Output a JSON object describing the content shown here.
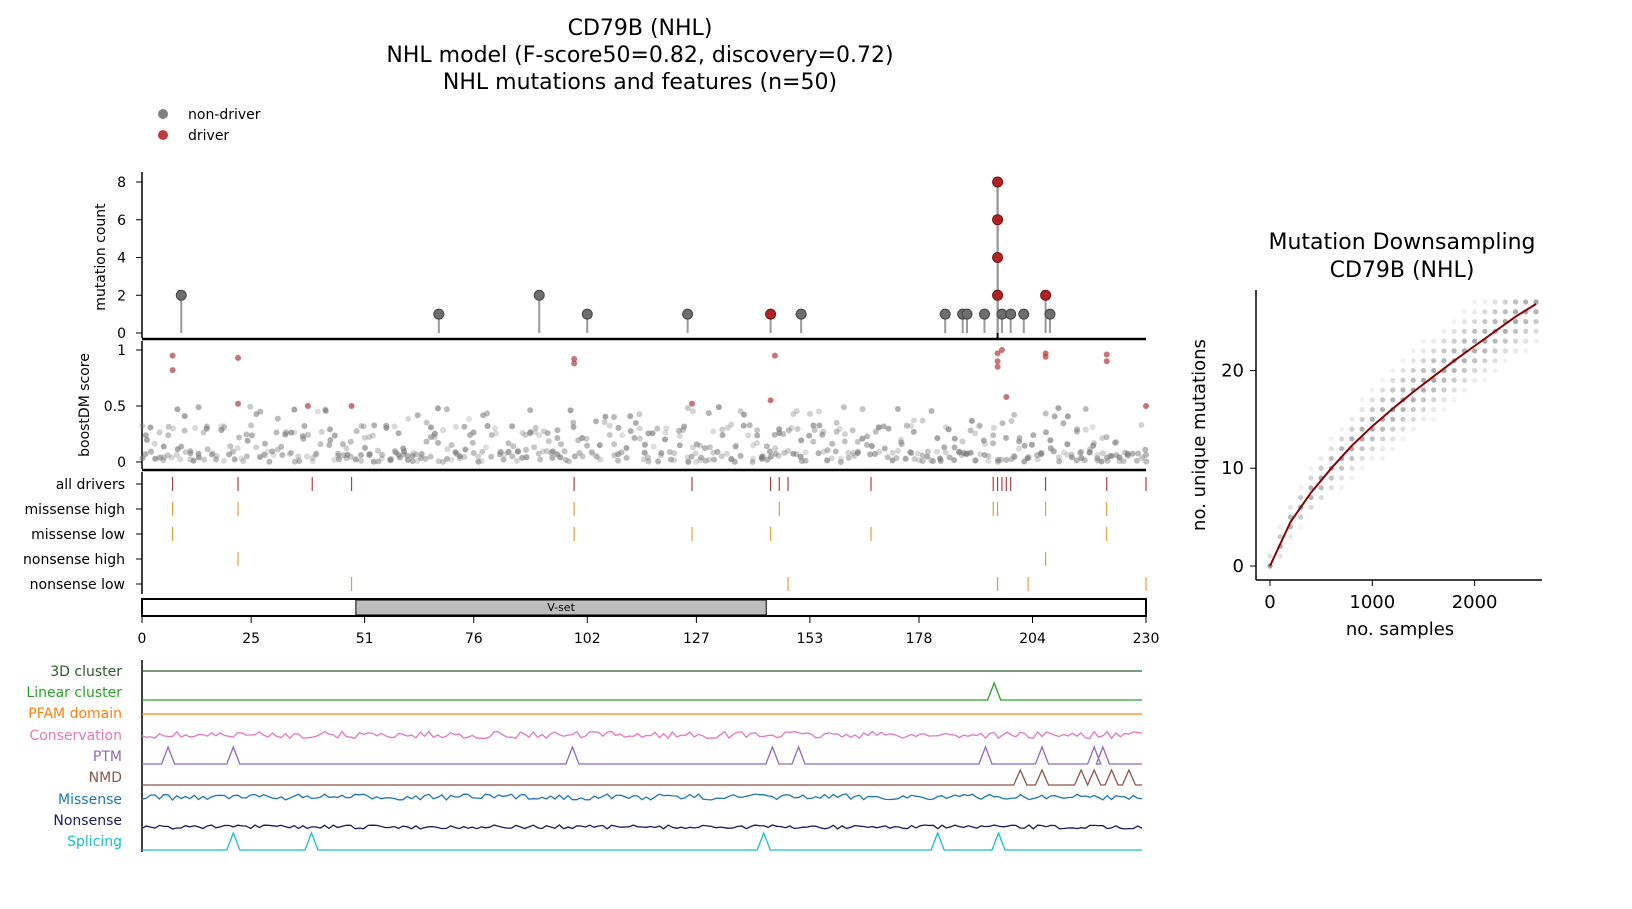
{
  "title_lines": [
    "CD79B (NHL)",
    "NHL model (F-score50=0.82, discovery=0.72)",
    "NHL mutations and features (n=50)"
  ],
  "legend": [
    {
      "label": "non-driver",
      "color": "#808080"
    },
    {
      "label": "driver",
      "color": "#c0393b"
    }
  ],
  "colors": {
    "driver": "#b22222",
    "nondriver": "#555555",
    "track_red": "#b04040",
    "track_orange": "#e0a040",
    "domain_fill": "#bdbdbd",
    "fit": "#8b0000"
  },
  "chart_data": [
    {
      "type": "lollipop",
      "title": "",
      "ylabel": "mutation count",
      "xlim": [
        0,
        230
      ],
      "ylim": [
        0,
        8
      ],
      "yticks": [
        0,
        2,
        4,
        6,
        8
      ],
      "non_driver_points": [
        [
          9,
          2
        ],
        [
          68,
          1
        ],
        [
          91,
          2
        ],
        [
          102,
          1
        ],
        [
          125,
          1
        ],
        [
          151,
          1
        ],
        [
          184,
          1
        ],
        [
          188,
          1
        ],
        [
          189,
          1
        ],
        [
          193,
          1
        ],
        [
          197,
          1
        ],
        [
          199,
          1
        ],
        [
          202,
          1
        ],
        [
          208,
          1
        ]
      ],
      "driver_points": [
        [
          144,
          1
        ],
        [
          196,
          2
        ],
        [
          196,
          4
        ],
        [
          196,
          6
        ],
        [
          196,
          8
        ],
        [
          207,
          2
        ]
      ],
      "highlight_position": 196
    },
    {
      "type": "scatter",
      "ylabel": "boostDM score",
      "ylim": [
        0,
        1
      ],
      "yticks": [
        "0",
        "0.5",
        "1"
      ],
      "driver_points": [
        [
          7,
          0.95
        ],
        [
          7,
          0.82
        ],
        [
          22,
          0.93
        ],
        [
          22,
          0.52
        ],
        [
          38,
          0.5
        ],
        [
          48,
          0.5
        ],
        [
          99,
          0.92
        ],
        [
          99,
          0.88
        ],
        [
          126,
          0.52
        ],
        [
          144,
          0.55
        ],
        [
          145,
          0.95
        ],
        [
          196,
          0.97
        ],
        [
          196,
          0.9
        ],
        [
          196,
          0.85
        ],
        [
          197,
          1.0
        ],
        [
          198,
          0.58
        ],
        [
          207,
          0.97
        ],
        [
          207,
          0.94
        ],
        [
          221,
          0.96
        ],
        [
          221,
          0.9
        ],
        [
          230,
          0.5
        ]
      ]
    },
    {
      "type": "table",
      "rows": [
        "all drivers",
        "missense high",
        "missense low",
        "nonsense high",
        "nonsense low"
      ],
      "positions": [
        [
          7,
          22,
          39,
          48,
          99,
          126,
          144,
          146,
          148,
          167,
          195,
          196,
          197,
          198,
          199,
          207,
          221,
          230
        ],
        [
          7,
          22,
          99,
          146,
          195,
          196,
          207,
          221
        ],
        [
          7,
          99,
          126,
          144,
          167,
          221
        ],
        [
          22,
          207
        ],
        [
          48,
          148,
          196,
          203,
          230
        ]
      ]
    },
    {
      "type": "table",
      "domains": [
        {
          "name": "V-set",
          "start": 49,
          "end": 143
        }
      ],
      "xticks": [
        "0",
        "25",
        "51",
        "76",
        "102",
        "127",
        "153",
        "178",
        "204",
        "230"
      ]
    },
    {
      "type": "line",
      "series": [
        {
          "name": "3D cluster",
          "color": "#2e5b2e"
        },
        {
          "name": "Linear cluster",
          "color": "#2ca02c"
        },
        {
          "name": "PFAM domain",
          "color": "#ff7f0e"
        },
        {
          "name": "Conservation",
          "color": "#e377c2"
        },
        {
          "name": "PTM",
          "color": "#9467bd"
        },
        {
          "name": "NMD",
          "color": "#8c564b"
        },
        {
          "name": "Missense",
          "color": "#1f77b4"
        },
        {
          "name": "Nonsense",
          "color": "#1a1a5e"
        },
        {
          "name": "Splicing",
          "color": "#17becf"
        }
      ],
      "peaks": {
        "Linear cluster": [
          196
        ],
        "PTM": [
          6,
          21,
          99,
          145,
          151,
          194,
          207,
          219,
          221
        ],
        "NMD": [
          202,
          207,
          216,
          219,
          223,
          227
        ],
        "Splicing": [
          21,
          39,
          143,
          183,
          197
        ]
      }
    },
    {
      "type": "scatter",
      "title": "Mutation Downsampling\nCD79B (NHL)",
      "xlabel": "no. samples",
      "ylabel": "no. unique mutations",
      "xlim": [
        0,
        2600
      ],
      "ylim": [
        0,
        27
      ],
      "xticks": [
        "0",
        "1000",
        "2000"
      ],
      "yticks": [
        "0",
        "10",
        "20"
      ],
      "fit_curve": [
        [
          0,
          0
        ],
        [
          200,
          4.5
        ],
        [
          400,
          7.5
        ],
        [
          600,
          10
        ],
        [
          800,
          12.3
        ],
        [
          1000,
          14.3
        ],
        [
          1200,
          16.1
        ],
        [
          1400,
          17.8
        ],
        [
          1600,
          19.4
        ],
        [
          1800,
          21
        ],
        [
          2000,
          22.5
        ],
        [
          2200,
          24
        ],
        [
          2400,
          25.5
        ],
        [
          2600,
          26.8
        ]
      ]
    }
  ]
}
